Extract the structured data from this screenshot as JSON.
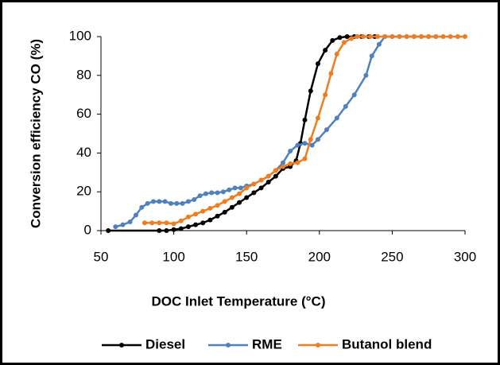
{
  "chart_data": {
    "type": "line",
    "xlabel": "DOC Inlet Temperature (°C)",
    "ylabel": "Conversion efficiency CO (%)",
    "xlim": [
      50,
      300
    ],
    "xticks": [
      50,
      100,
      150,
      200,
      250,
      300
    ],
    "ylim": [
      0,
      100
    ],
    "yticks": [
      0,
      20,
      40,
      60,
      80,
      100
    ],
    "grid": false,
    "legend": "bottom",
    "series": [
      {
        "name": "Diesel",
        "color": "#000000",
        "x": [
          55,
          90,
          95,
          100,
          105,
          110,
          115,
          120,
          125,
          130,
          135,
          140,
          145,
          150,
          155,
          160,
          165,
          170,
          175,
          180,
          184,
          187,
          190,
          194,
          199,
          204,
          209,
          214,
          219,
          224,
          229,
          234,
          238
        ],
        "values": [
          0,
          0,
          0,
          0.5,
          1,
          2,
          3,
          4,
          5.5,
          7.5,
          9.5,
          12,
          14.5,
          17,
          19.5,
          22,
          25,
          28,
          32,
          33,
          36,
          45,
          57,
          72,
          86,
          93,
          98,
          99.5,
          100,
          100,
          100,
          100,
          100
        ]
      },
      {
        "name": "RME",
        "color": "#4f81bd",
        "x": [
          60,
          65,
          70,
          74,
          78,
          82,
          86,
          90,
          94,
          98,
          102,
          106,
          110,
          114,
          118,
          122,
          126,
          130,
          134,
          138,
          142,
          146,
          150,
          155,
          160,
          165,
          170,
          175,
          180,
          185,
          190,
          195,
          199,
          205,
          212,
          218,
          224,
          232,
          236,
          241,
          245,
          250,
          255,
          260,
          265,
          270,
          275,
          280
        ],
        "values": [
          2,
          3,
          4.5,
          8,
          12,
          14,
          15,
          15,
          15,
          14,
          14,
          14,
          15,
          16,
          18,
          19,
          19.5,
          19.5,
          20,
          21,
          22,
          22,
          23,
          24,
          26,
          28,
          31,
          35,
          41,
          44,
          45,
          44,
          47,
          52,
          58,
          64,
          70,
          80,
          90,
          96,
          100,
          100,
          100,
          100,
          100,
          100,
          100,
          100
        ]
      },
      {
        "name": "Butanol blend",
        "color": "#f07d1d",
        "x": [
          80,
          85,
          90,
          95,
          100,
          105,
          110,
          115,
          120,
          125,
          130,
          135,
          140,
          145,
          150,
          155,
          160,
          165,
          170,
          175,
          180,
          185,
          190,
          194,
          199,
          204,
          208,
          212,
          217,
          222,
          226,
          230,
          235,
          240,
          245,
          250,
          255,
          260,
          265,
          270,
          275,
          280,
          285,
          290,
          295,
          300
        ],
        "values": [
          4,
          4,
          4,
          4,
          3.5,
          5,
          7,
          8.5,
          10,
          11.5,
          13,
          15,
          17,
          19,
          22,
          24,
          26,
          28,
          31,
          33,
          34.5,
          35,
          37,
          47,
          58,
          70,
          81,
          91,
          97,
          99,
          100,
          100,
          100,
          100,
          100,
          100,
          100,
          100,
          100,
          100,
          100,
          100,
          100,
          100,
          100,
          100
        ]
      }
    ]
  }
}
